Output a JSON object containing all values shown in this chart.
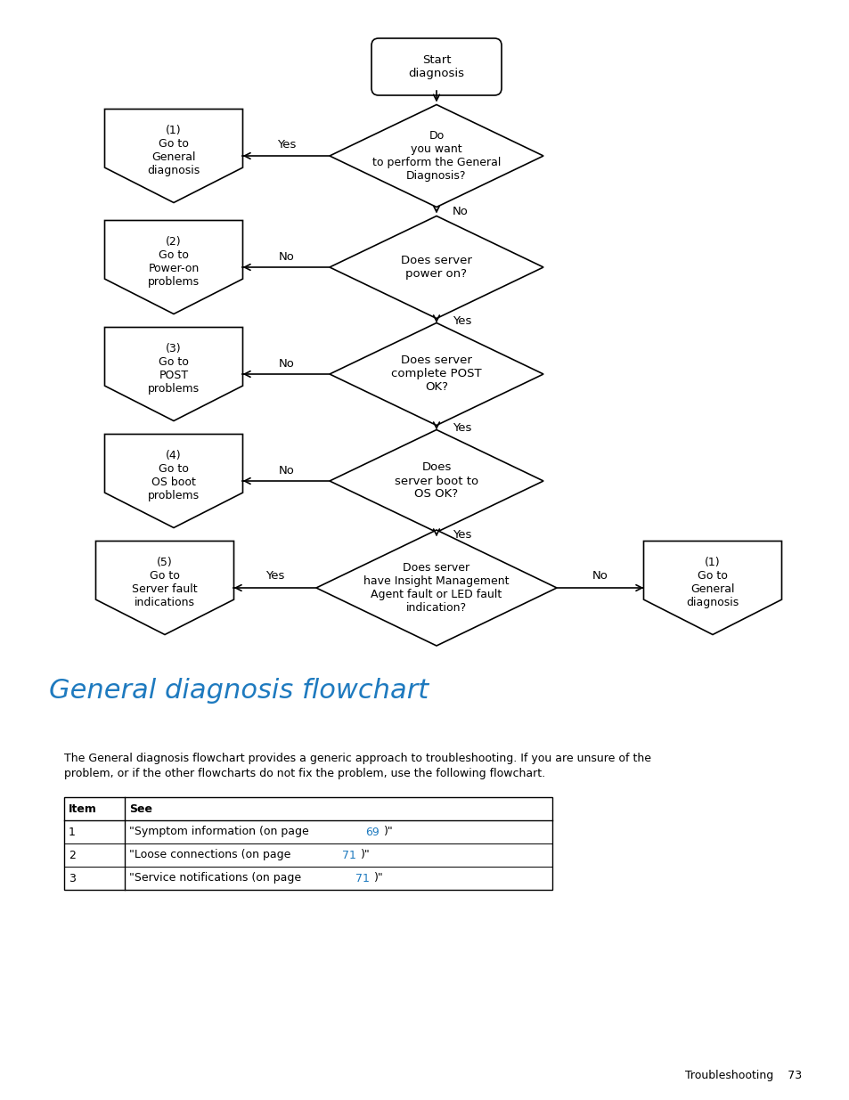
{
  "title": "General diagnosis flowchart",
  "title_color": "#1e7abf",
  "page_text": "Troubleshooting    73",
  "description_line1": "The General diagnosis flowchart provides a generic approach to troubleshooting. If you are unsure of the",
  "description_line2": "problem, or if the other flowcharts do not fix the problem, use the following flowchart.",
  "table_headers": [
    "Item",
    "See"
  ],
  "table_rows": [
    [
      "1",
      "\"Symptom information (on page ",
      "69",
      ")\""
    ],
    [
      "2",
      "\"Loose connections (on page ",
      "71",
      ")\""
    ],
    [
      "3",
      "\"Service notifications (on page ",
      "71",
      ")\""
    ]
  ],
  "link_color": "#1e7abf",
  "bg_color": "#ffffff",
  "text_color": "#000000"
}
